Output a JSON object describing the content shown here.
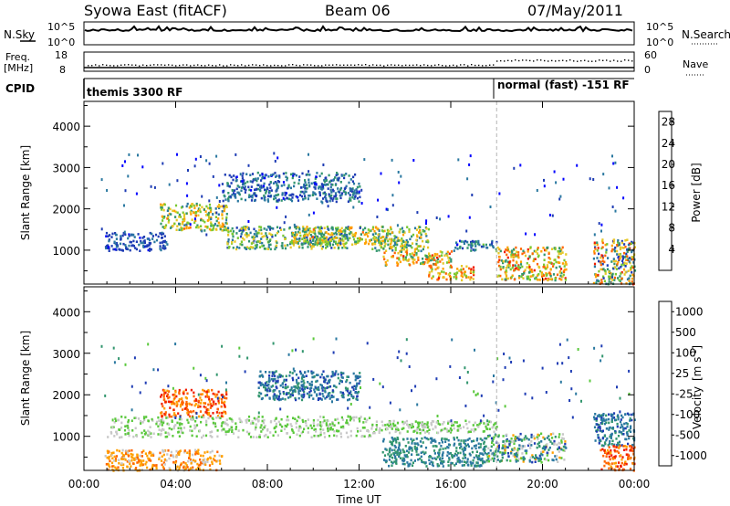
{
  "header": {
    "title": "Syowa East (fitACF)",
    "beam": "Beam 06",
    "date": "07/May/2011"
  },
  "strip_panels": {
    "nsky_label": "N.Sky",
    "nsky_ticks": [
      "10^5",
      "10^0"
    ],
    "nsearch_label": "N.Search",
    "nsearch_ticks": [
      "10^5",
      "10^0"
    ],
    "freq_label_lines": [
      "Freq.",
      "[MHz]"
    ],
    "freq_ticks": [
      "18",
      "8"
    ],
    "nave_label": "Nave",
    "nave_ticks": [
      "60",
      "0"
    ],
    "cpid_label": "CPID",
    "cpid_modes": [
      "themis 3300 RF",
      "normal (fast) -151 RF"
    ]
  },
  "chart_data": [
    {
      "type": "heatmap",
      "ylabel": "Slant Range [km]",
      "xlabel": "Time UT",
      "x_ticks": [
        "00:00",
        "04:00",
        "08:00",
        "12:00",
        "16:00",
        "20:00",
        "00:00"
      ],
      "xlim_hours": [
        0,
        24
      ],
      "y_ticks": [
        1000,
        2000,
        3000,
        4000
      ],
      "ylim": [
        180,
        4600
      ],
      "mode_change_hour": 18,
      "colorbar": {
        "label": "Power [dB]",
        "ticks": [
          "4",
          "8",
          "12",
          "16",
          "20",
          "24",
          "28"
        ],
        "range": [
          0,
          30
        ],
        "colors": [
          "#0000ff",
          "#1e3cb4",
          "#2a78a0",
          "#32966e",
          "#78c832",
          "#e6c828",
          "#ffa000",
          "#ff6400",
          "#f01e00"
        ]
      },
      "regions": [
        {
          "t": [
            0.9,
            3.6
          ],
          "r": [
            1000,
            1450
          ],
          "level": [
            3,
            8
          ]
        },
        {
          "t": [
            3.3,
            6.2
          ],
          "r": [
            1500,
            2150
          ],
          "level": [
            9,
            24
          ]
        },
        {
          "t": [
            6.2,
            11.5
          ],
          "r": [
            1050,
            1600
          ],
          "level": [
            5,
            20
          ]
        },
        {
          "t": [
            9.0,
            13.0
          ],
          "r": [
            1150,
            1600
          ],
          "level": [
            10,
            24
          ]
        },
        {
          "t": [
            12.5,
            15.0
          ],
          "r": [
            1000,
            1600
          ],
          "level": [
            8,
            22
          ]
        },
        {
          "t": [
            13.0,
            16.0
          ],
          "r": [
            650,
            1000
          ],
          "level": [
            10,
            27
          ]
        },
        {
          "t": [
            15.0,
            17.0
          ],
          "r": [
            300,
            650
          ],
          "level": [
            14,
            28
          ]
        },
        {
          "t": [
            16.0,
            18.0
          ],
          "r": [
            1000,
            1250
          ],
          "level": [
            3,
            14
          ]
        },
        {
          "t": [
            18.0,
            21.0
          ],
          "r": [
            300,
            1100
          ],
          "level": [
            10,
            28
          ]
        },
        {
          "t": [
            22.2,
            24.0
          ],
          "r": [
            200,
            1300
          ],
          "level": [
            3,
            28
          ]
        },
        {
          "t": [
            6.0,
            12.0
          ],
          "r": [
            2200,
            2900
          ],
          "level": [
            3,
            12
          ]
        }
      ]
    },
    {
      "type": "heatmap",
      "ylabel": "Slant Range [km]",
      "xlabel": "Time UT",
      "x_ticks": [
        "00:00",
        "04:00",
        "08:00",
        "12:00",
        "16:00",
        "20:00",
        "00:00"
      ],
      "xlim_hours": [
        0,
        24
      ],
      "y_ticks": [
        1000,
        2000,
        3000,
        4000
      ],
      "ylim": [
        180,
        4600
      ],
      "mode_change_hour": 18,
      "colorbar": {
        "label_prefix": "Velocity",
        "label_unit": "[m s",
        "label_exp": "-1",
        "label_close": "]",
        "ticks": [
          "1000",
          "500",
          "100",
          "25",
          "-25",
          "-100",
          "-500",
          "-1000"
        ],
        "colors": [
          "#1e3cb4",
          "#2a78a0",
          "#32966e",
          "#5ac83c",
          "#c8c8c8",
          "#ffa000",
          "#ff6400",
          "#f01e00"
        ]
      },
      "regions": [
        {
          "t": [
            0.9,
            6.0
          ],
          "r": [
            200,
            700
          ],
          "level": [
            4,
            6
          ]
        },
        {
          "t": [
            3.3,
            6.2
          ],
          "r": [
            1500,
            2150
          ],
          "level": [
            5,
            7
          ]
        },
        {
          "t": [
            1.0,
            12.5
          ],
          "r": [
            1000,
            1500
          ],
          "level": [
            3,
            4
          ]
        },
        {
          "t": [
            7.5,
            12.0
          ],
          "r": [
            1900,
            2600
          ],
          "level": [
            0,
            2
          ]
        },
        {
          "t": [
            12.5,
            18.0
          ],
          "r": [
            1100,
            1400
          ],
          "level": [
            3,
            4
          ]
        },
        {
          "t": [
            13.0,
            17.5
          ],
          "r": [
            300,
            1000
          ],
          "level": [
            1,
            2
          ]
        },
        {
          "t": [
            17.5,
            21.0
          ],
          "r": [
            400,
            1100
          ],
          "level": [
            0,
            5
          ]
        },
        {
          "t": [
            22.2,
            24.0
          ],
          "r": [
            800,
            1600
          ],
          "level": [
            0,
            2
          ]
        },
        {
          "t": [
            22.5,
            24.0
          ],
          "r": [
            200,
            800
          ],
          "level": [
            5,
            7
          ]
        }
      ]
    }
  ]
}
